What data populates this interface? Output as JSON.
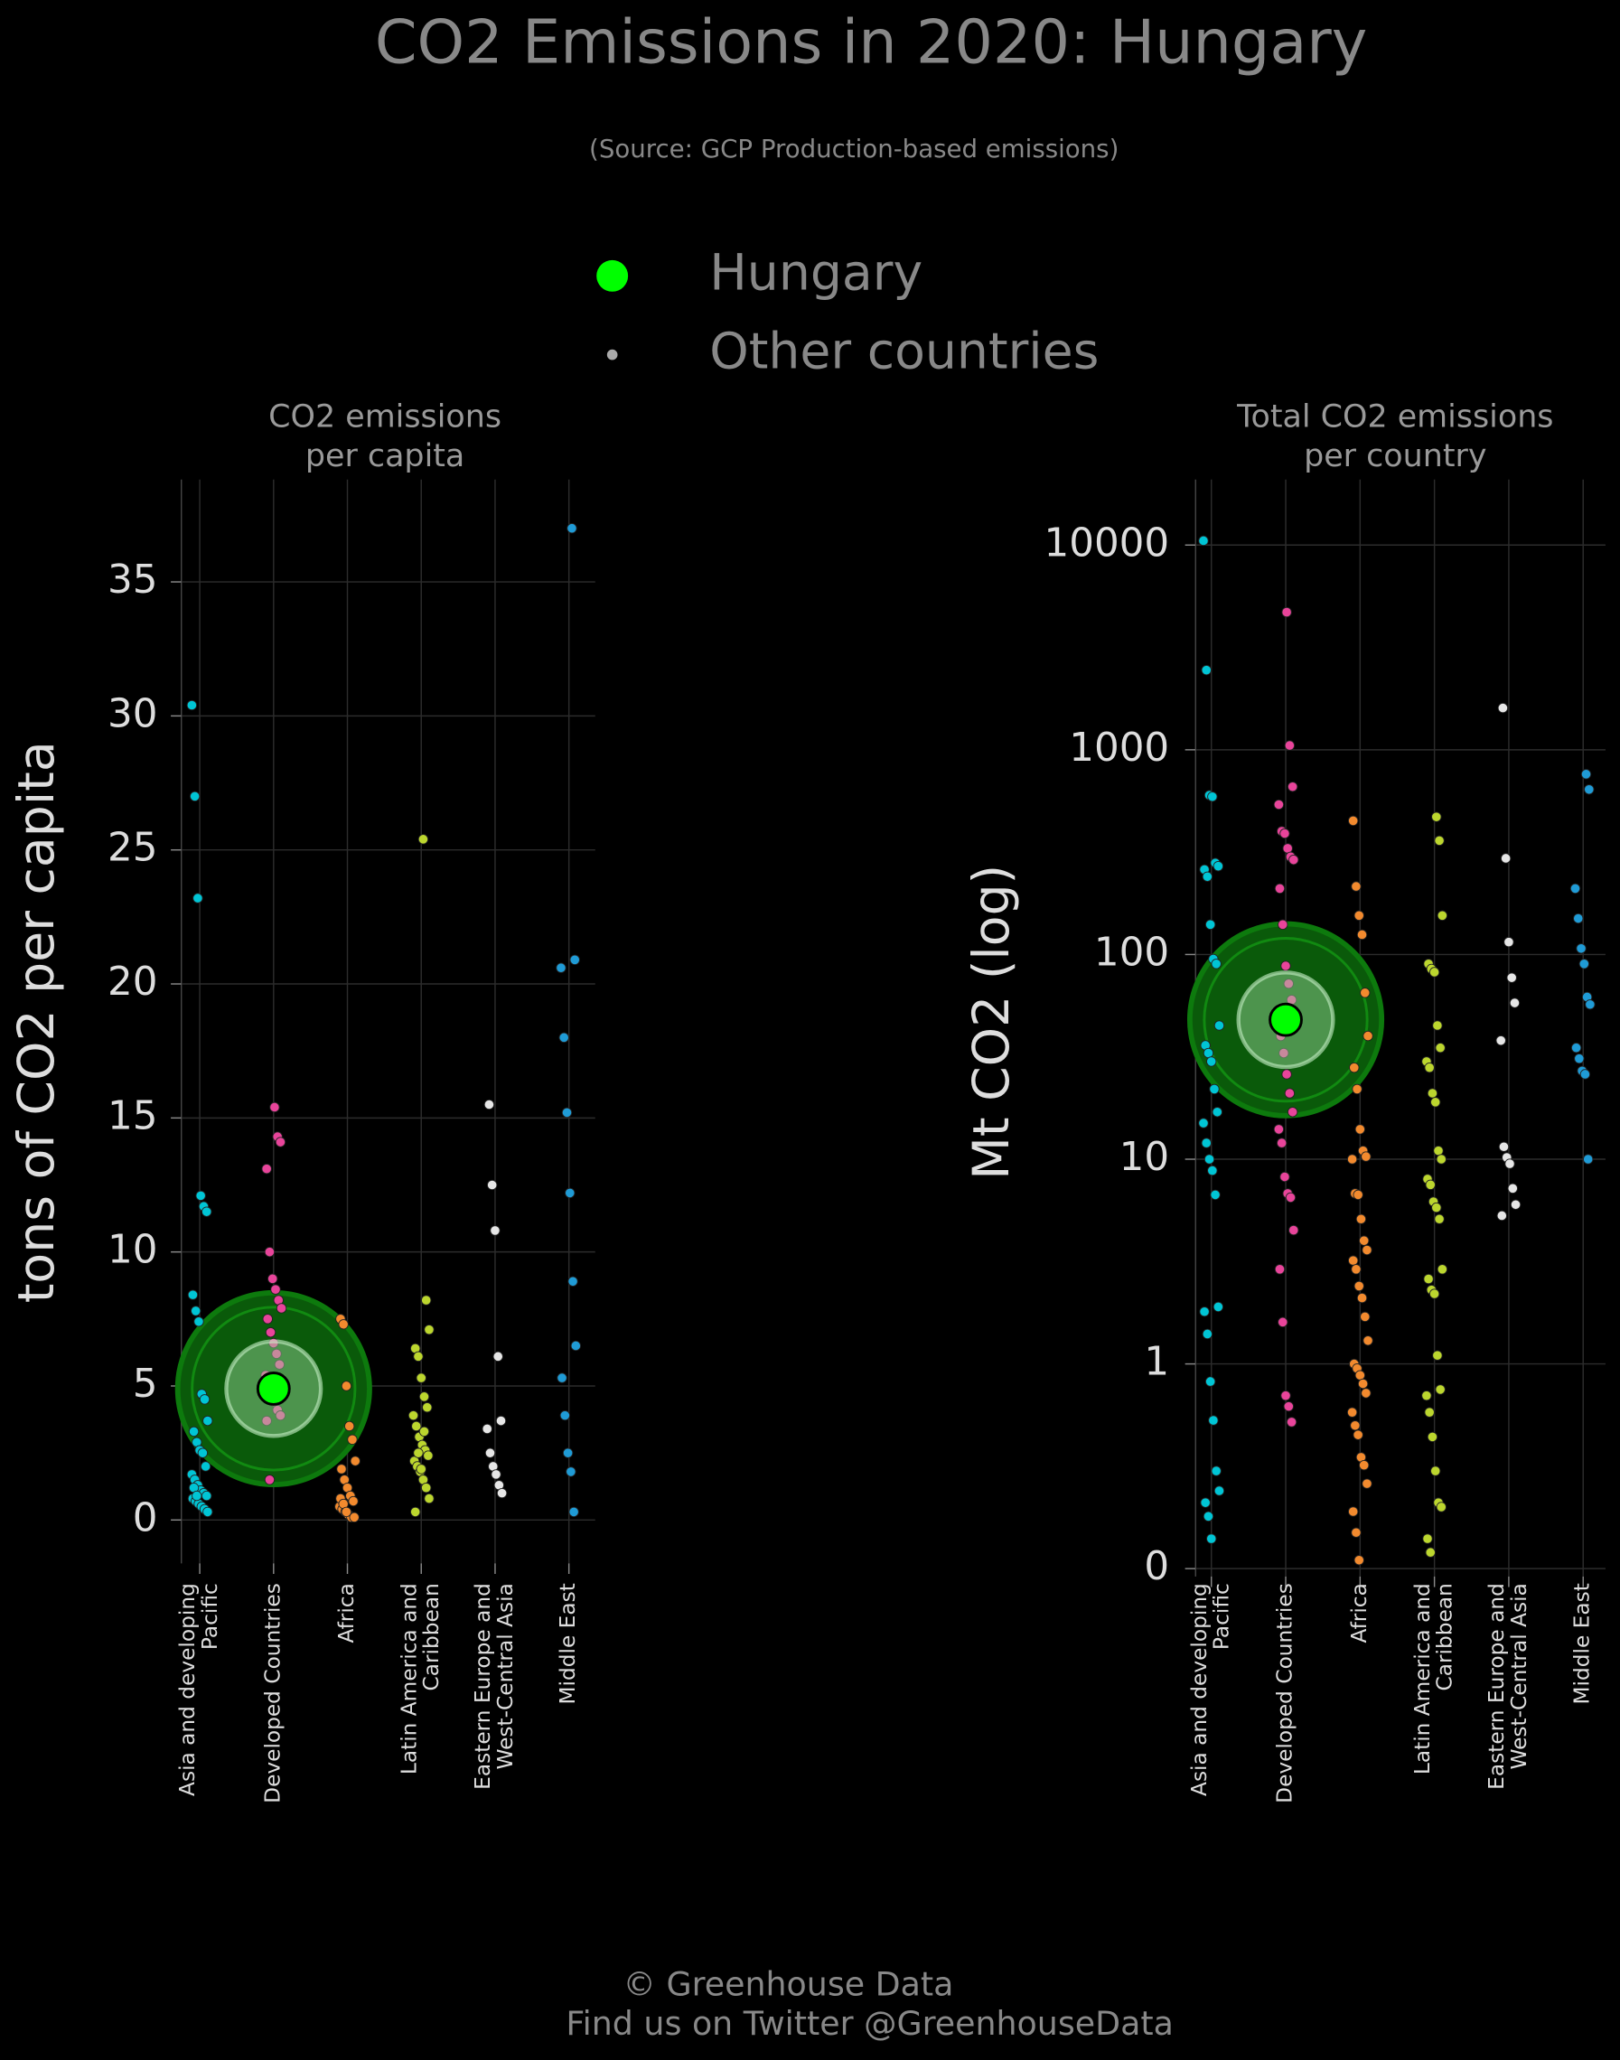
{
  "title": "CO2 Emissions in 2020: Hungary",
  "subtitle": "(Source: GCP Production-based emissions)",
  "legend": {
    "entries": [
      {
        "name": "Hungary",
        "color": "#00ff00"
      },
      {
        "name": "Other countries",
        "color": "#aaaaaa"
      }
    ]
  },
  "footer": [
    "© Greenhouse Data",
    "Find us on Twitter @GreenhouseData"
  ],
  "chart_data": [
    {
      "type": "strip",
      "title": [
        "CO2 emissions",
        "per capita"
      ],
      "y_label": "tons of CO2 per capita",
      "yscale": "linear",
      "ylim": [
        -1.62,
        38.82
      ],
      "yticks": [
        0,
        5,
        10,
        15,
        20,
        25,
        30,
        35
      ],
      "grid": true,
      "categories": [
        [
          "Asia and developing",
          "Pacific"
        ],
        [
          "Developed Countries"
        ],
        [
          "Africa"
        ],
        [
          "Latin America and",
          "Caribbean"
        ],
        [
          "Eastern Europe and",
          "West-Central Asia"
        ],
        [
          "Middle East"
        ]
      ],
      "colors": [
        "#00c5d5",
        "#e8449a",
        "#f28a2e",
        "#bcd62e",
        "#e6e6e6",
        "#1f9bd6"
      ],
      "values": [
        [
          30.4,
          27.0,
          23.2,
          12.1,
          11.7,
          11.5,
          8.4,
          7.8,
          7.4,
          4.7,
          4.5,
          3.7,
          3.3,
          2.9,
          2.6,
          2.5,
          2.0,
          1.7,
          1.5,
          1.3,
          1.1,
          1.0,
          0.9,
          0.8,
          0.7,
          0.6,
          0.5,
          0.4,
          0.3,
          1.2,
          0.9
        ],
        [
          15.4,
          14.3,
          14.1,
          13.1,
          10.0,
          9.0,
          8.6,
          8.2,
          7.9,
          7.5,
          7.0,
          6.6,
          6.2,
          5.8,
          5.4,
          5.0,
          4.7,
          4.4,
          4.1,
          3.9,
          3.7,
          1.5
        ],
        [
          7.5,
          7.3,
          5.0,
          3.5,
          3.0,
          2.2,
          1.9,
          1.5,
          1.2,
          0.9,
          0.7,
          0.5,
          0.4,
          0.3,
          0.2,
          0.1,
          0.1,
          0.8,
          0.6,
          0.3
        ],
        [
          25.4,
          8.2,
          7.1,
          6.4,
          6.1,
          5.3,
          4.6,
          4.2,
          3.9,
          3.5,
          3.1,
          2.8,
          2.6,
          2.4,
          2.2,
          2.0,
          1.8,
          1.5,
          1.2,
          0.8,
          0.3,
          2.5,
          1.9,
          3.3
        ],
        [
          15.5,
          12.5,
          10.8,
          6.1,
          3.7,
          3.4,
          2.5,
          2.0,
          1.7,
          1.3,
          1.0
        ],
        [
          37.0,
          20.9,
          20.6,
          18.0,
          15.2,
          12.2,
          8.9,
          6.5,
          5.3,
          3.9,
          2.5,
          1.8,
          0.3
        ]
      ],
      "highlight": {
        "category": 1,
        "value": 4.9
      }
    },
    {
      "type": "strip",
      "title": [
        "Total CO2 emissions",
        "per country"
      ],
      "y_label": "Mt CO2 (log)",
      "yscale": "log",
      "ylim": [
        0.0915,
        20900
      ],
      "yticks": [
        {
          "value": 0.1,
          "label": "0"
        },
        1,
        10,
        100,
        1000,
        10000
      ],
      "grid": true,
      "categories": [
        [
          "Asia and developing",
          "Pacific"
        ],
        [
          "Developed Countries"
        ],
        [
          "Africa"
        ],
        [
          "Latin America and",
          "Caribbean"
        ],
        [
          "Eastern Europe and",
          "West-Central Asia"
        ],
        [
          "Middle East"
        ]
      ],
      "colors": [
        "#00c5d5",
        "#e8449a",
        "#f28a2e",
        "#bcd62e",
        "#e6e6e6",
        "#1f9bd6"
      ],
      "values": [
        [
          10500,
          2450,
          600,
          590,
          280,
          270,
          260,
          240,
          140,
          95,
          90,
          45,
          36,
          33,
          30,
          22,
          17,
          15,
          12,
          10,
          8.8,
          6.7,
          1.9,
          1.8,
          1.4,
          0.82,
          0.53,
          0.3,
          0.24,
          0.21,
          0.18,
          0.14
        ],
        [
          4700,
          1050,
          660,
          540,
          400,
          390,
          330,
          300,
          290,
          210,
          140,
          88,
          72,
          60,
          48,
          40,
          33,
          26,
          21,
          17,
          14,
          12,
          8.2,
          6.8,
          6.5,
          4.5,
          2.9,
          1.6,
          0.7,
          0.62,
          0.52
        ],
        [
          450,
          215,
          155,
          125,
          65,
          40,
          28,
          22,
          14,
          11,
          10.3,
          10,
          6.8,
          6.7,
          5.1,
          4.0,
          3.6,
          3.2,
          2.9,
          2.4,
          2.1,
          1.7,
          1.3,
          1.0,
          0.95,
          0.88,
          0.8,
          0.72,
          0.58,
          0.5,
          0.45,
          0.35,
          0.32,
          0.26,
          0.19,
          0.15,
          0.11
        ],
        [
          470,
          360,
          155,
          90,
          85,
          82,
          45,
          35,
          30,
          28,
          21,
          19,
          11,
          10,
          8,
          7.5,
          6.2,
          5.8,
          5.1,
          2.9,
          2.6,
          2.3,
          2.2,
          1.1,
          0.75,
          0.7,
          0.58,
          0.44,
          0.3,
          0.21,
          0.2,
          0.14,
          0.12
        ],
        [
          1600,
          295,
          115,
          77,
          58,
          38,
          11.5,
          10.2,
          9.5,
          7.2,
          6.0,
          5.3
        ],
        [
          760,
          640,
          210,
          150,
          107,
          90,
          62,
          57,
          35,
          31,
          27,
          26,
          10
        ]
      ],
      "highlight": {
        "category": 1,
        "value": 48
      }
    }
  ]
}
